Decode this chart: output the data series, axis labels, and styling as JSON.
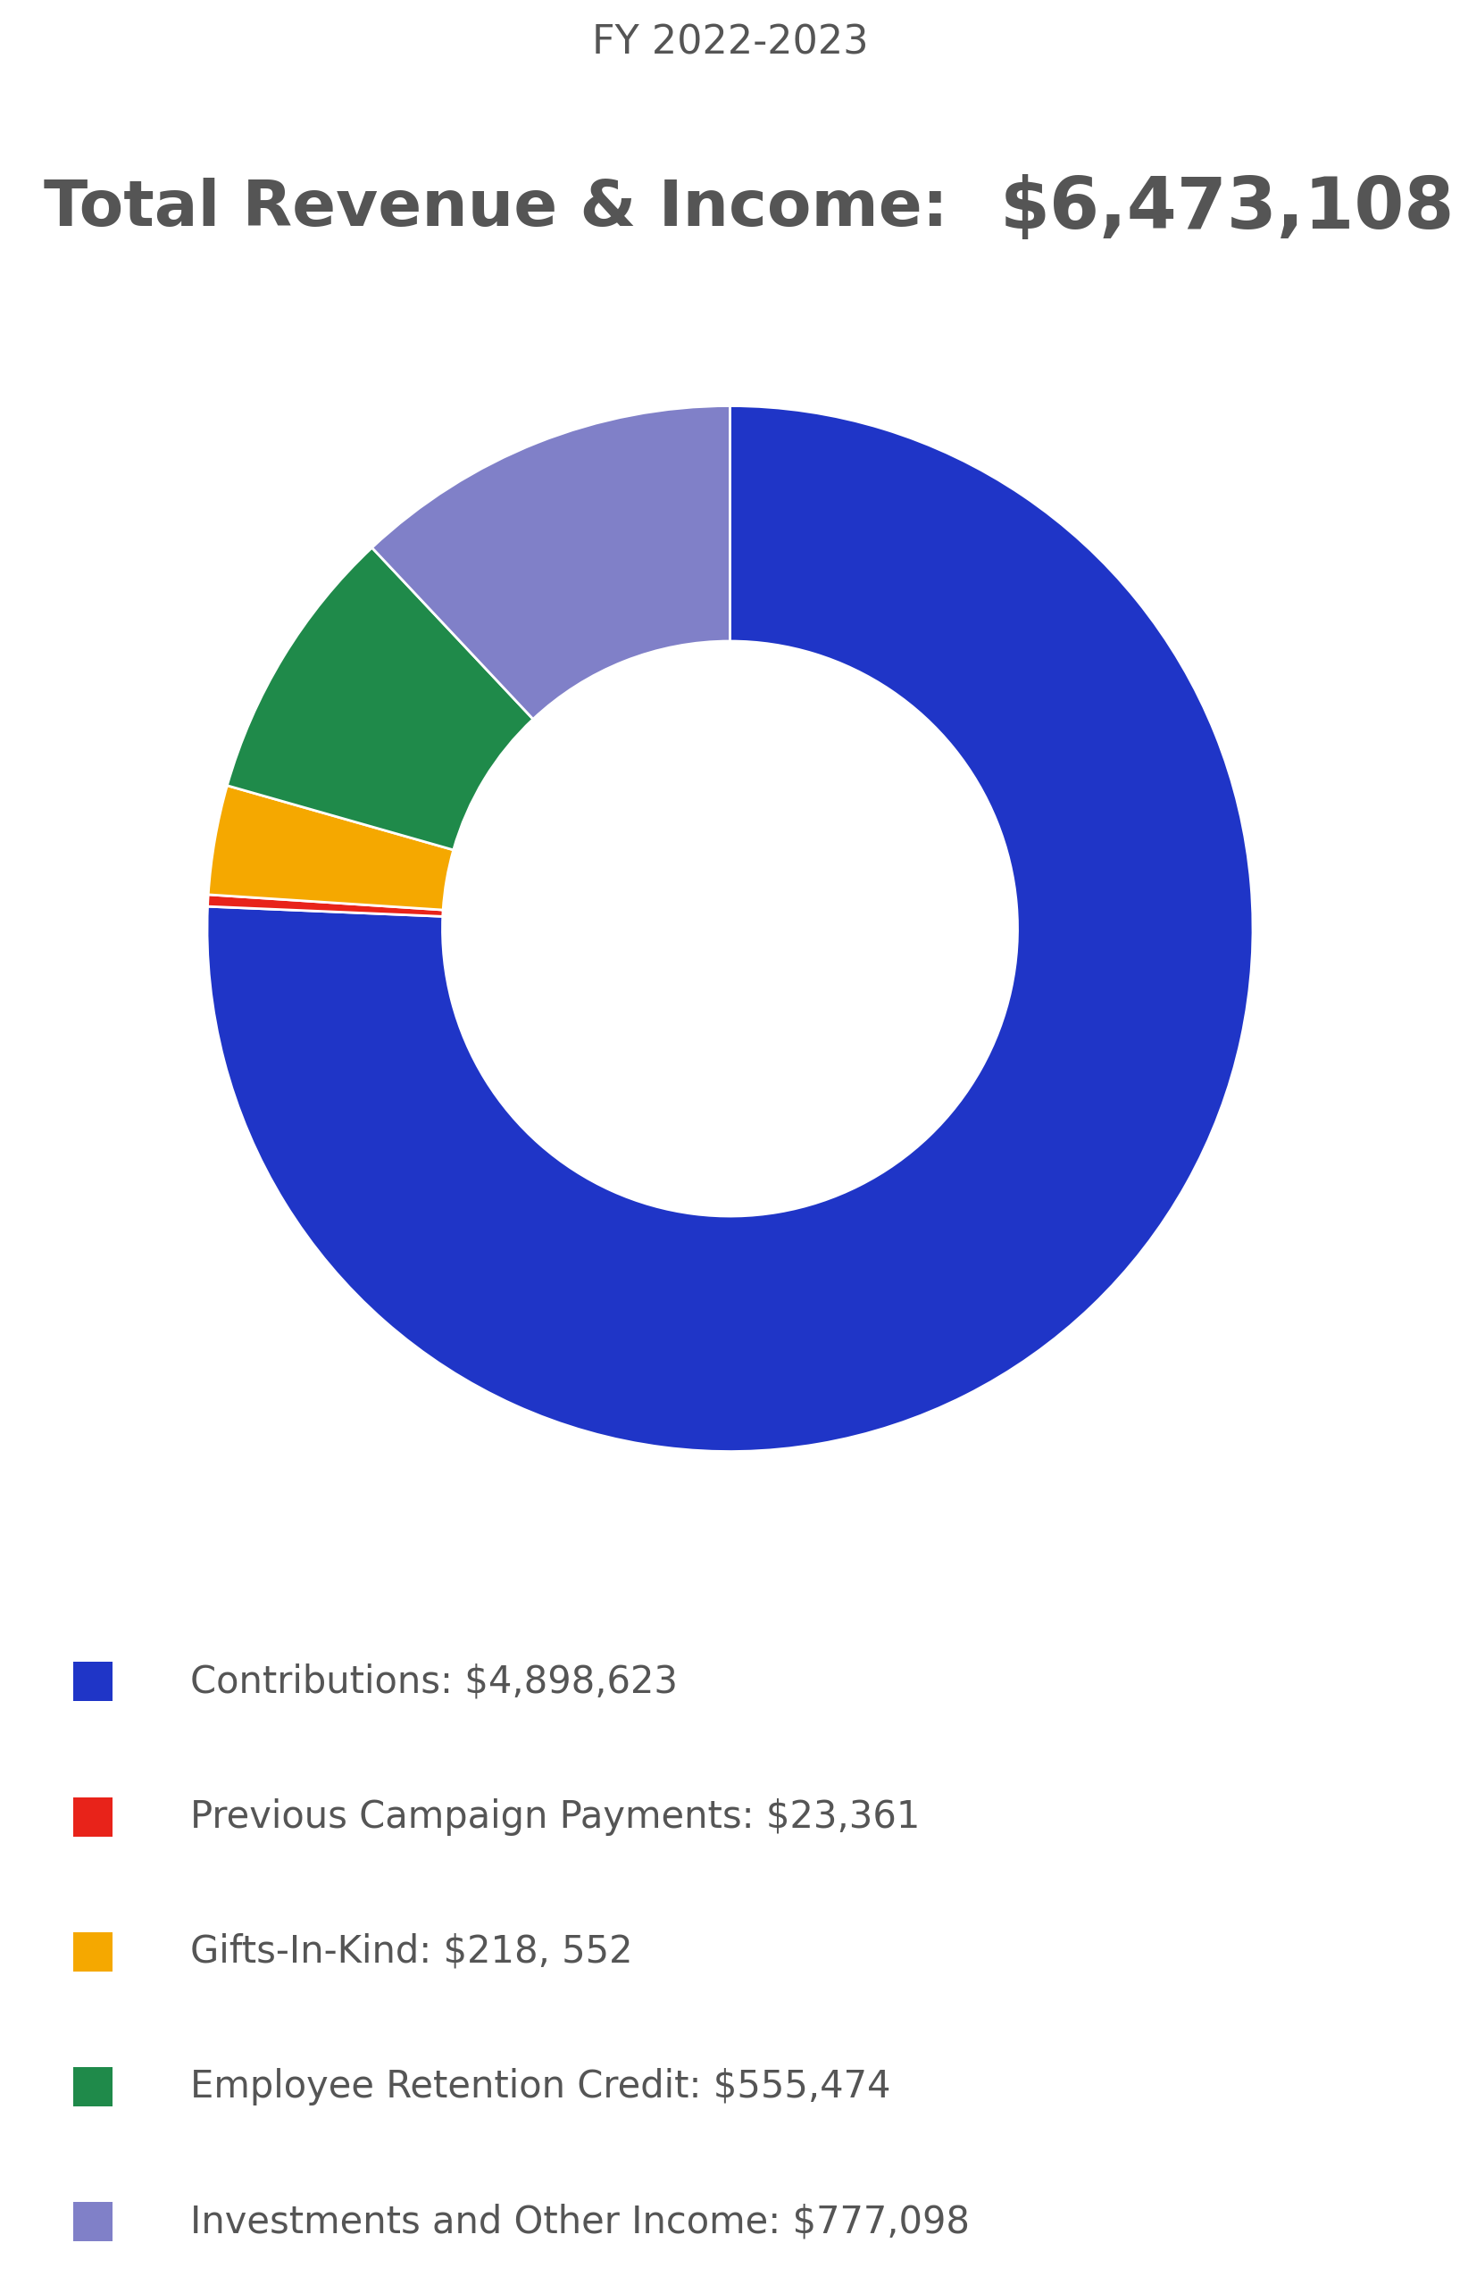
{
  "fy_label": "FY 2022-2023",
  "title_left": "Total Revenue & Income:  ",
  "title_right": "$6,473,108",
  "values": [
    4898623,
    23361,
    218552,
    555474,
    777098
  ],
  "labels": [
    "Contributions: $4,898,623",
    "Previous Campaign Payments: $23,361",
    "Gifts-In-Kind: $218, 552",
    "Employee Retention Credit: $555,474",
    "Investments and Other Income: $777,098"
  ],
  "colors": [
    "#1f35c7",
    "#e8231a",
    "#f5a800",
    "#1f8a4a",
    "#8080c8"
  ],
  "background_color": "#ffffff",
  "text_color": "#555555",
  "donut_width": 0.45,
  "startangle": 90
}
